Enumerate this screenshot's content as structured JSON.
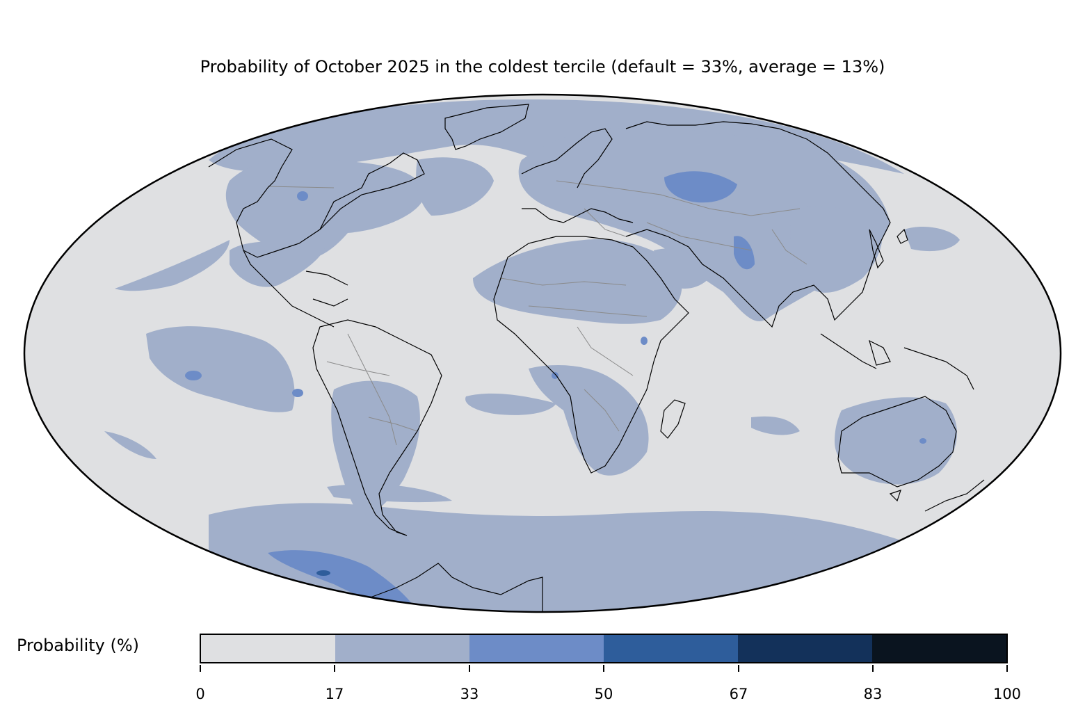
{
  "title": "Probability of October 2025 in the coldest tercile (default = 33%, average = 13%)",
  "legend": {
    "label": "Probability (%)",
    "ticks": [
      "0",
      "17",
      "33",
      "50",
      "67",
      "83",
      "100"
    ],
    "bins": [
      {
        "range": "0-17",
        "color": "#dfe0e2"
      },
      {
        "range": "17-33",
        "color": "#a1afca"
      },
      {
        "range": "33-50",
        "color": "#6d8cc7"
      },
      {
        "range": "50-67",
        "color": "#2e5d9b"
      },
      {
        "range": "67-83",
        "color": "#13315a"
      },
      {
        "range": "83-100",
        "color": "#0a141f"
      }
    ]
  },
  "map": {
    "projection": "Mollweide",
    "ocean_color": "#dfe0e2",
    "coastline_color": "#000000",
    "border_color": "#8a8a8a",
    "variable": "Probability of coldest tercile",
    "period": "October 2025",
    "default_probability_percent": 33,
    "average_probability_percent": 13
  }
}
